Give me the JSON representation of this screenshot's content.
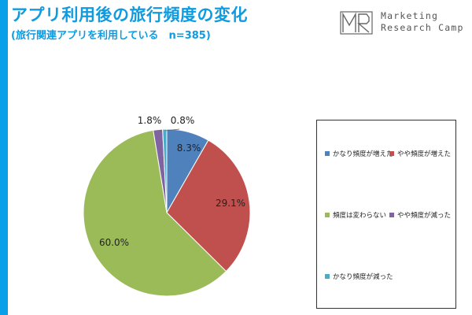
{
  "header": {
    "title": "アプリ利用後の旅行頻度の変化",
    "subtitle": "(旅行関連アプリを利用している　n=385)"
  },
  "logo": {
    "mark_text": "MR",
    "line1": "Marketing",
    "line2": "Research Camp"
  },
  "colors": {
    "accent": "#0aa0e9",
    "series": [
      "#4f81bd",
      "#c0504d",
      "#9bbb59",
      "#8064a2",
      "#4bacc6"
    ]
  },
  "chart_data": {
    "type": "pie",
    "categories": [
      "かなり頻度が増えた",
      "やや頻度が増えた",
      "頻度は変わらない",
      "やや頻度が減った",
      "かなり頻度が減った"
    ],
    "values": [
      8.3,
      29.1,
      60.0,
      1.8,
      0.8
    ],
    "labels": [
      "8.3%",
      "29.1%",
      "60.0%",
      "1.8%",
      "0.8%"
    ],
    "legend_position": "right"
  }
}
